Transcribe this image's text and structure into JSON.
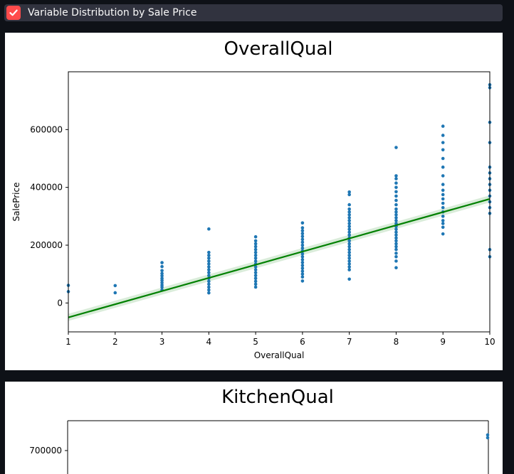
{
  "checkbox": {
    "label": "Variable Distribution by Sale Price",
    "checked": true,
    "accent": "#ff4b4b"
  },
  "chart_data": [
    {
      "type": "scatter",
      "title": "OverallQual",
      "xlabel": "OverallQual",
      "ylabel": "SalePrice",
      "xlim": [
        1,
        10
      ],
      "ylim": [
        -100000,
        800000
      ],
      "x_ticks": [
        1,
        2,
        3,
        4,
        5,
        6,
        7,
        8,
        9,
        10
      ],
      "y_ticks": [
        0,
        200000,
        400000,
        600000
      ],
      "point_color": "#1f77b4",
      "regression": {
        "color": "#008000",
        "x": [
          1,
          10
        ],
        "y": [
          -50000,
          360000
        ]
      },
      "points": [
        {
          "x": 1,
          "y": 39300
        },
        {
          "x": 1,
          "y": 61000
        },
        {
          "x": 2,
          "y": 35311
        },
        {
          "x": 2,
          "y": 60000
        },
        {
          "x": 3,
          "y": 45000
        },
        {
          "x": 3,
          "y": 55000
        },
        {
          "x": 3,
          "y": 62000
        },
        {
          "x": 3,
          "y": 70000
        },
        {
          "x": 3,
          "y": 78000
        },
        {
          "x": 3,
          "y": 85000
        },
        {
          "x": 3,
          "y": 94000
        },
        {
          "x": 3,
          "y": 102000
        },
        {
          "x": 3,
          "y": 112000
        },
        {
          "x": 3,
          "y": 126000
        },
        {
          "x": 3,
          "y": 139600
        },
        {
          "x": 4,
          "y": 34900
        },
        {
          "x": 4,
          "y": 45000
        },
        {
          "x": 4,
          "y": 55000
        },
        {
          "x": 4,
          "y": 65000
        },
        {
          "x": 4,
          "y": 75000
        },
        {
          "x": 4,
          "y": 85000
        },
        {
          "x": 4,
          "y": 95000
        },
        {
          "x": 4,
          "y": 105000
        },
        {
          "x": 4,
          "y": 115000
        },
        {
          "x": 4,
          "y": 125000
        },
        {
          "x": 4,
          "y": 135000
        },
        {
          "x": 4,
          "y": 145000
        },
        {
          "x": 4,
          "y": 155000
        },
        {
          "x": 4,
          "y": 165000
        },
        {
          "x": 4,
          "y": 175000
        },
        {
          "x": 4,
          "y": 256000
        },
        {
          "x": 5,
          "y": 55000
        },
        {
          "x": 5,
          "y": 65000
        },
        {
          "x": 5,
          "y": 75000
        },
        {
          "x": 5,
          "y": 85000
        },
        {
          "x": 5,
          "y": 95000
        },
        {
          "x": 5,
          "y": 105000
        },
        {
          "x": 5,
          "y": 115000
        },
        {
          "x": 5,
          "y": 125000
        },
        {
          "x": 5,
          "y": 135000
        },
        {
          "x": 5,
          "y": 145000
        },
        {
          "x": 5,
          "y": 155000
        },
        {
          "x": 5,
          "y": 165000
        },
        {
          "x": 5,
          "y": 175000
        },
        {
          "x": 5,
          "y": 185000
        },
        {
          "x": 5,
          "y": 195000
        },
        {
          "x": 5,
          "y": 205000
        },
        {
          "x": 5,
          "y": 215000
        },
        {
          "x": 5,
          "y": 228950
        },
        {
          "x": 6,
          "y": 76000
        },
        {
          "x": 6,
          "y": 90000
        },
        {
          "x": 6,
          "y": 100000
        },
        {
          "x": 6,
          "y": 110000
        },
        {
          "x": 6,
          "y": 120000
        },
        {
          "x": 6,
          "y": 130000
        },
        {
          "x": 6,
          "y": 140000
        },
        {
          "x": 6,
          "y": 150000
        },
        {
          "x": 6,
          "y": 160000
        },
        {
          "x": 6,
          "y": 170000
        },
        {
          "x": 6,
          "y": 180000
        },
        {
          "x": 6,
          "y": 190000
        },
        {
          "x": 6,
          "y": 200000
        },
        {
          "x": 6,
          "y": 210000
        },
        {
          "x": 6,
          "y": 220000
        },
        {
          "x": 6,
          "y": 230000
        },
        {
          "x": 6,
          "y": 240000
        },
        {
          "x": 6,
          "y": 250000
        },
        {
          "x": 6,
          "y": 260000
        },
        {
          "x": 6,
          "y": 277000
        },
        {
          "x": 7,
          "y": 82500
        },
        {
          "x": 7,
          "y": 115000
        },
        {
          "x": 7,
          "y": 125000
        },
        {
          "x": 7,
          "y": 135000
        },
        {
          "x": 7,
          "y": 145000
        },
        {
          "x": 7,
          "y": 155000
        },
        {
          "x": 7,
          "y": 165000
        },
        {
          "x": 7,
          "y": 175000
        },
        {
          "x": 7,
          "y": 185000
        },
        {
          "x": 7,
          "y": 195000
        },
        {
          "x": 7,
          "y": 205000
        },
        {
          "x": 7,
          "y": 215000
        },
        {
          "x": 7,
          "y": 225000
        },
        {
          "x": 7,
          "y": 235000
        },
        {
          "x": 7,
          "y": 245000
        },
        {
          "x": 7,
          "y": 255000
        },
        {
          "x": 7,
          "y": 265000
        },
        {
          "x": 7,
          "y": 275000
        },
        {
          "x": 7,
          "y": 285000
        },
        {
          "x": 7,
          "y": 295000
        },
        {
          "x": 7,
          "y": 305000
        },
        {
          "x": 7,
          "y": 315000
        },
        {
          "x": 7,
          "y": 325000
        },
        {
          "x": 7,
          "y": 340000
        },
        {
          "x": 7,
          "y": 375000
        },
        {
          "x": 7,
          "y": 383970
        },
        {
          "x": 8,
          "y": 122000
        },
        {
          "x": 8,
          "y": 145000
        },
        {
          "x": 8,
          "y": 160000
        },
        {
          "x": 8,
          "y": 172000
        },
        {
          "x": 8,
          "y": 185000
        },
        {
          "x": 8,
          "y": 195000
        },
        {
          "x": 8,
          "y": 205000
        },
        {
          "x": 8,
          "y": 215000
        },
        {
          "x": 8,
          "y": 225000
        },
        {
          "x": 8,
          "y": 235000
        },
        {
          "x": 8,
          "y": 245000
        },
        {
          "x": 8,
          "y": 255000
        },
        {
          "x": 8,
          "y": 265000
        },
        {
          "x": 8,
          "y": 275000
        },
        {
          "x": 8,
          "y": 285000
        },
        {
          "x": 8,
          "y": 295000
        },
        {
          "x": 8,
          "y": 305000
        },
        {
          "x": 8,
          "y": 315000
        },
        {
          "x": 8,
          "y": 325000
        },
        {
          "x": 8,
          "y": 340000
        },
        {
          "x": 8,
          "y": 355000
        },
        {
          "x": 8,
          "y": 370000
        },
        {
          "x": 8,
          "y": 385000
        },
        {
          "x": 8,
          "y": 400000
        },
        {
          "x": 8,
          "y": 415000
        },
        {
          "x": 8,
          "y": 430000
        },
        {
          "x": 8,
          "y": 440000
        },
        {
          "x": 8,
          "y": 538000
        },
        {
          "x": 9,
          "y": 239000
        },
        {
          "x": 9,
          "y": 262000
        },
        {
          "x": 9,
          "y": 275000
        },
        {
          "x": 9,
          "y": 285000
        },
        {
          "x": 9,
          "y": 300000
        },
        {
          "x": 9,
          "y": 315000
        },
        {
          "x": 9,
          "y": 330000
        },
        {
          "x": 9,
          "y": 345000
        },
        {
          "x": 9,
          "y": 360000
        },
        {
          "x": 9,
          "y": 375000
        },
        {
          "x": 9,
          "y": 390000
        },
        {
          "x": 9,
          "y": 410000
        },
        {
          "x": 9,
          "y": 440000
        },
        {
          "x": 9,
          "y": 470000
        },
        {
          "x": 9,
          "y": 500000
        },
        {
          "x": 9,
          "y": 530000
        },
        {
          "x": 9,
          "y": 555000
        },
        {
          "x": 9,
          "y": 580000
        },
        {
          "x": 9,
          "y": 611657
        },
        {
          "x": 10,
          "y": 160000
        },
        {
          "x": 10,
          "y": 184750
        },
        {
          "x": 10,
          "y": 310000
        },
        {
          "x": 10,
          "y": 330000
        },
        {
          "x": 10,
          "y": 350000
        },
        {
          "x": 10,
          "y": 370000
        },
        {
          "x": 10,
          "y": 390000
        },
        {
          "x": 10,
          "y": 410000
        },
        {
          "x": 10,
          "y": 430000
        },
        {
          "x": 10,
          "y": 450000
        },
        {
          "x": 10,
          "y": 470000
        },
        {
          "x": 10,
          "y": 555000
        },
        {
          "x": 10,
          "y": 625000
        },
        {
          "x": 10,
          "y": 745000
        },
        {
          "x": 10,
          "y": 755000
        }
      ]
    },
    {
      "type": "scatter",
      "title": "KitchenQual",
      "y_ticks": [
        700000
      ],
      "points": [
        {
          "y": 755000
        },
        {
          "y": 745000
        }
      ]
    }
  ]
}
